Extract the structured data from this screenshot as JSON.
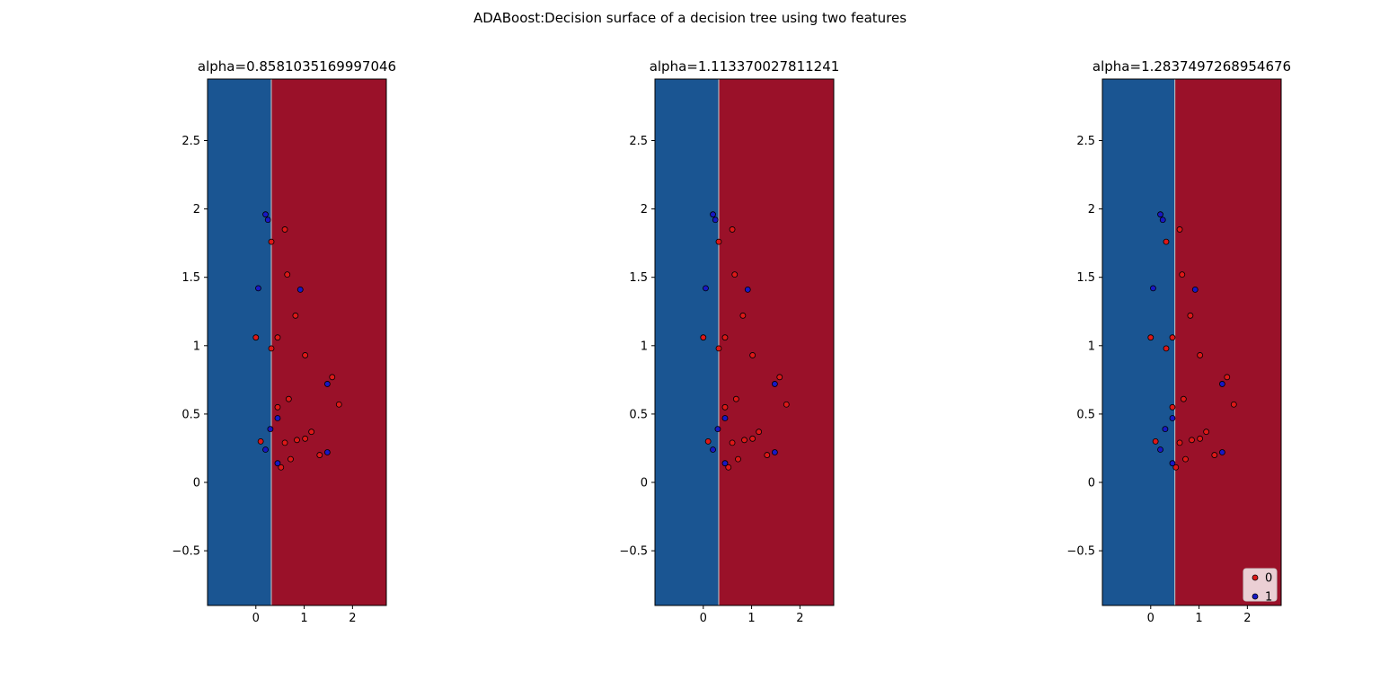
{
  "figure": {
    "title": "ADABoost:Decision surface of a decision tree using two features"
  },
  "colors": {
    "left_region": "#1a5592",
    "right_region": "#9a1129",
    "class0": "#dd1818",
    "class1": "#1818c4",
    "boundary": "#c8c8c8"
  },
  "chart_data": [
    {
      "type": "scatter",
      "title": "alpha=0.8581035169997046",
      "xlim": [
        -1.0,
        2.7
      ],
      "ylim": [
        -0.9,
        2.95
      ],
      "xticks": [
        0,
        1,
        2
      ],
      "yticks": [
        -0.5,
        0.0,
        0.5,
        1.0,
        1.5,
        2.0,
        2.5
      ],
      "decision_threshold_x": 0.32,
      "legend": null,
      "series": [
        {
          "name": "0",
          "points": [
            [
              0.0,
              1.06
            ],
            [
              0.1,
              0.3
            ],
            [
              0.32,
              1.76
            ],
            [
              0.32,
              0.98
            ],
            [
              0.45,
              1.06
            ],
            [
              0.45,
              0.55
            ],
            [
              0.6,
              1.85
            ],
            [
              0.65,
              1.52
            ],
            [
              0.68,
              0.61
            ],
            [
              0.6,
              0.29
            ],
            [
              0.52,
              0.11
            ],
            [
              0.72,
              0.17
            ],
            [
              0.82,
              1.22
            ],
            [
              0.85,
              0.31
            ],
            [
              1.02,
              0.32
            ],
            [
              1.02,
              0.93
            ],
            [
              1.15,
              0.37
            ],
            [
              1.32,
              0.2
            ],
            [
              1.58,
              0.77
            ],
            [
              1.72,
              0.57
            ]
          ]
        },
        {
          "name": "1",
          "points": [
            [
              0.05,
              1.42
            ],
            [
              0.2,
              1.96
            ],
            [
              0.25,
              1.92
            ],
            [
              0.2,
              0.24
            ],
            [
              0.3,
              0.39
            ],
            [
              0.45,
              0.47
            ],
            [
              0.45,
              0.14
            ],
            [
              0.92,
              1.41
            ],
            [
              1.48,
              0.72
            ],
            [
              1.48,
              0.22
            ]
          ]
        }
      ]
    },
    {
      "type": "scatter",
      "title": "alpha=1.113370027811241",
      "xlim": [
        -1.0,
        2.7
      ],
      "ylim": [
        -0.9,
        2.95
      ],
      "xticks": [
        0,
        1,
        2
      ],
      "yticks": [
        -0.5,
        0.0,
        0.5,
        1.0,
        1.5,
        2.0,
        2.5
      ],
      "decision_threshold_x": 0.32,
      "legend": null,
      "series": [
        {
          "name": "0",
          "points": [
            [
              0.0,
              1.06
            ],
            [
              0.1,
              0.3
            ],
            [
              0.32,
              1.76
            ],
            [
              0.32,
              0.98
            ],
            [
              0.45,
              1.06
            ],
            [
              0.45,
              0.55
            ],
            [
              0.6,
              1.85
            ],
            [
              0.65,
              1.52
            ],
            [
              0.68,
              0.61
            ],
            [
              0.6,
              0.29
            ],
            [
              0.52,
              0.11
            ],
            [
              0.72,
              0.17
            ],
            [
              0.82,
              1.22
            ],
            [
              0.85,
              0.31
            ],
            [
              1.02,
              0.32
            ],
            [
              1.02,
              0.93
            ],
            [
              1.15,
              0.37
            ],
            [
              1.32,
              0.2
            ],
            [
              1.58,
              0.77
            ],
            [
              1.72,
              0.57
            ]
          ]
        },
        {
          "name": "1",
          "points": [
            [
              0.05,
              1.42
            ],
            [
              0.2,
              1.96
            ],
            [
              0.25,
              1.92
            ],
            [
              0.2,
              0.24
            ],
            [
              0.3,
              0.39
            ],
            [
              0.45,
              0.47
            ],
            [
              0.45,
              0.14
            ],
            [
              0.92,
              1.41
            ],
            [
              1.48,
              0.72
            ],
            [
              1.48,
              0.22
            ]
          ]
        }
      ]
    },
    {
      "type": "scatter",
      "title": "alpha=1.2837497268954676",
      "xlim": [
        -1.0,
        2.7
      ],
      "ylim": [
        -0.9,
        2.95
      ],
      "xticks": [
        0,
        1,
        2
      ],
      "yticks": [
        -0.5,
        0.0,
        0.5,
        1.0,
        1.5,
        2.0,
        2.5
      ],
      "decision_threshold_x": 0.5,
      "legend": "bottom-right",
      "legend_labels": [
        "0",
        "1"
      ],
      "series": [
        {
          "name": "0",
          "points": [
            [
              0.0,
              1.06
            ],
            [
              0.1,
              0.3
            ],
            [
              0.32,
              1.76
            ],
            [
              0.32,
              0.98
            ],
            [
              0.45,
              1.06
            ],
            [
              0.45,
              0.55
            ],
            [
              0.6,
              1.85
            ],
            [
              0.65,
              1.52
            ],
            [
              0.68,
              0.61
            ],
            [
              0.6,
              0.29
            ],
            [
              0.52,
              0.11
            ],
            [
              0.72,
              0.17
            ],
            [
              0.82,
              1.22
            ],
            [
              0.85,
              0.31
            ],
            [
              1.02,
              0.32
            ],
            [
              1.02,
              0.93
            ],
            [
              1.15,
              0.37
            ],
            [
              1.32,
              0.2
            ],
            [
              1.58,
              0.77
            ],
            [
              1.72,
              0.57
            ]
          ]
        },
        {
          "name": "1",
          "points": [
            [
              0.05,
              1.42
            ],
            [
              0.2,
              1.96
            ],
            [
              0.25,
              1.92
            ],
            [
              0.2,
              0.24
            ],
            [
              0.3,
              0.39
            ],
            [
              0.45,
              0.47
            ],
            [
              0.45,
              0.14
            ],
            [
              0.92,
              1.41
            ],
            [
              1.48,
              0.72
            ],
            [
              1.48,
              0.22
            ]
          ]
        }
      ]
    }
  ]
}
